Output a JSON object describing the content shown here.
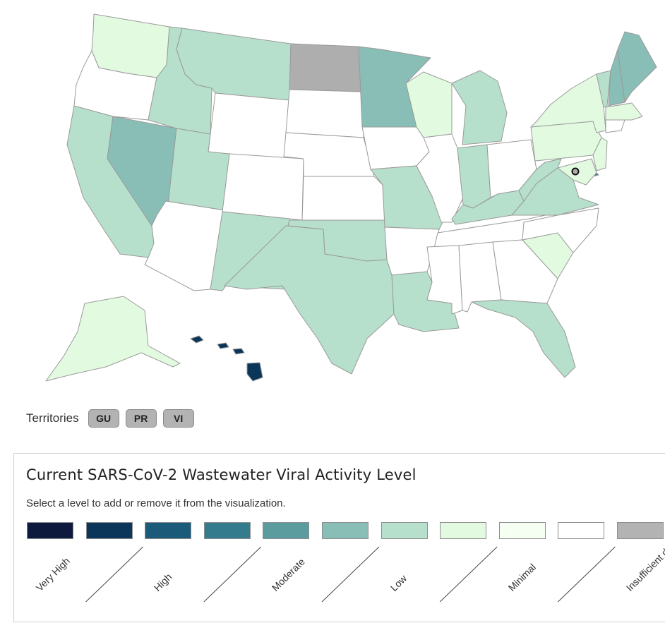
{
  "map": {
    "states": [
      {
        "code": "WA",
        "level": "Minimal"
      },
      {
        "code": "OR",
        "level": "No data"
      },
      {
        "code": "CA",
        "level": "Low"
      },
      {
        "code": "NV",
        "level": "Moderate"
      },
      {
        "code": "ID",
        "level": "Low"
      },
      {
        "code": "MT",
        "level": "Low"
      },
      {
        "code": "WY",
        "level": "No data"
      },
      {
        "code": "UT",
        "level": "Low"
      },
      {
        "code": "AZ",
        "level": "No data"
      },
      {
        "code": "CO",
        "level": "No data"
      },
      {
        "code": "NM",
        "level": "Low"
      },
      {
        "code": "ND",
        "level": "Insufficient data"
      },
      {
        "code": "SD",
        "level": "No data"
      },
      {
        "code": "NE",
        "level": "No data"
      },
      {
        "code": "KS",
        "level": "No data"
      },
      {
        "code": "OK",
        "level": "Low"
      },
      {
        "code": "TX",
        "level": "Low"
      },
      {
        "code": "MN",
        "level": "Moderate"
      },
      {
        "code": "IA",
        "level": "No data"
      },
      {
        "code": "MO",
        "level": "Low"
      },
      {
        "code": "AR",
        "level": "No data"
      },
      {
        "code": "LA",
        "level": "Low"
      },
      {
        "code": "WI",
        "level": "Minimal"
      },
      {
        "code": "IL",
        "level": "No data"
      },
      {
        "code": "MI",
        "level": "Low"
      },
      {
        "code": "IN",
        "level": "Low"
      },
      {
        "code": "OH",
        "level": "No data"
      },
      {
        "code": "KY",
        "level": "Low"
      },
      {
        "code": "TN",
        "level": "No data"
      },
      {
        "code": "MS",
        "level": "No data"
      },
      {
        "code": "AL",
        "level": "No data"
      },
      {
        "code": "GA",
        "level": "No data"
      },
      {
        "code": "FL",
        "level": "Low"
      },
      {
        "code": "SC",
        "level": "Minimal"
      },
      {
        "code": "NC",
        "level": "No data"
      },
      {
        "code": "VA",
        "level": "Low"
      },
      {
        "code": "WV",
        "level": "Low"
      },
      {
        "code": "PA",
        "level": "Minimal"
      },
      {
        "code": "NY",
        "level": "Minimal"
      },
      {
        "code": "VT",
        "level": "Low"
      },
      {
        "code": "NH",
        "level": "Moderate"
      },
      {
        "code": "ME",
        "level": "Moderate"
      },
      {
        "code": "MA",
        "level": "Minimal"
      },
      {
        "code": "CT",
        "level": "No data"
      },
      {
        "code": "NJ",
        "level": "Minimal"
      },
      {
        "code": "DE",
        "level": "High"
      },
      {
        "code": "MD",
        "level": "Minimal"
      },
      {
        "code": "DC",
        "level": "Insufficient data"
      },
      {
        "code": "AK",
        "level": "Minimal"
      },
      {
        "code": "HI",
        "level": "Very High"
      }
    ]
  },
  "territories": {
    "label": "Territories",
    "buttons": [
      "GU",
      "PR",
      "VI"
    ]
  },
  "legend": {
    "title": "Current SARS-CoV-2 Wastewater Viral Activity Level",
    "subtitle": "Select a level to add or remove it from the visualization.",
    "swatches": [
      "#0d1a3d",
      "#0b3659",
      "#1b5a78",
      "#357b8e",
      "#5b9c9f",
      "#88beb6",
      "#b6e0cb",
      "#e2fbe0",
      "#f5fff2",
      "#ffffff",
      "#b3b3b3"
    ],
    "labels": [
      "Very High",
      "High",
      "Moderate",
      "Low",
      "Minimal",
      "Insufficient data"
    ]
  },
  "colors": {
    "Very High": "#0b3659",
    "High": "#357b8e",
    "Moderate": "#88beb6",
    "Low": "#b6e0cb",
    "Minimal": "#e2fbe0",
    "Very Minimal": "#f5fff2",
    "No data": "#ffffff",
    "Insufficient data": "#aeaeae"
  }
}
